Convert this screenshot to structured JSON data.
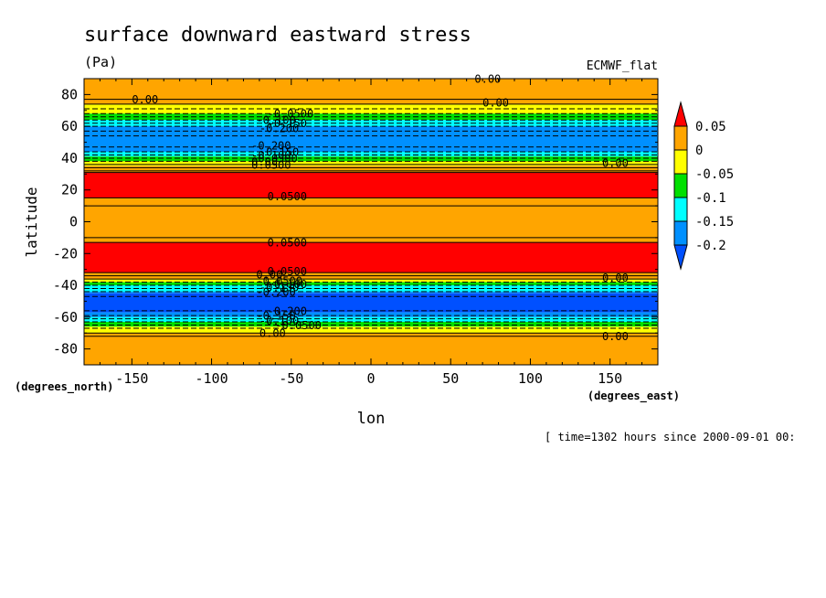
{
  "chart_data": {
    "type": "heatmap",
    "title": "surface downward eastward stress",
    "subtitle": "(Pa)",
    "dataset": "ECMWF_flat",
    "xlabel": "lon",
    "ylabel": "latitude",
    "x_units": "(degrees_east)",
    "y_units": "(degrees_north)",
    "footer": "[ time=1302 hours since 2000-09-01 00:",
    "xlim": [
      -180,
      180
    ],
    "ylim": [
      -90,
      90
    ],
    "x_ticks": [
      "-150",
      "-100",
      "-50",
      "0",
      "50",
      "100",
      "150"
    ],
    "x_tick_values": [
      -150,
      -100,
      -50,
      0,
      50,
      100,
      150
    ],
    "y_ticks": [
      "80",
      "60",
      "40",
      "20",
      "0",
      "-20",
      "-40",
      "-60",
      "-80"
    ],
    "y_tick_values": [
      80,
      60,
      40,
      20,
      0,
      -20,
      -40,
      -60,
      -80
    ],
    "colorbar": {
      "labels": [
        "0.05",
        "0",
        "-0.05",
        "-0.1",
        "-0.15",
        "-0.2"
      ],
      "levels": [
        0.05,
        0,
        -0.05,
        -0.1,
        -0.15,
        -0.2
      ],
      "colors": [
        "#ff0000",
        "#ffa500",
        "#ffff00",
        "#00e000",
        "#00ffff",
        "#0090ff",
        "#0050ff"
      ]
    },
    "bands": [
      {
        "lat": [
          74,
          90
        ],
        "value": 0.02,
        "color": "#ffa500"
      },
      {
        "lat": [
          68,
          74
        ],
        "value": -0.02,
        "color": "#ffff00"
      },
      {
        "lat": [
          64,
          68
        ],
        "value": -0.07,
        "color": "#00e000"
      },
      {
        "lat": [
          60,
          64
        ],
        "value": -0.12,
        "color": "#00ffff"
      },
      {
        "lat": [
          44,
          60
        ],
        "value": -0.17,
        "color": "#0090ff"
      },
      {
        "lat": [
          41,
          44
        ],
        "value": -0.12,
        "color": "#00ffff"
      },
      {
        "lat": [
          38,
          41
        ],
        "value": -0.07,
        "color": "#00e000"
      },
      {
        "lat": [
          35,
          38
        ],
        "value": -0.02,
        "color": "#ffff00"
      },
      {
        "lat": [
          31,
          35
        ],
        "value": 0.02,
        "color": "#ffa500"
      },
      {
        "lat": [
          15,
          31
        ],
        "value": 0.07,
        "color": "#ff0000"
      },
      {
        "lat": [
          -13,
          15
        ],
        "value": 0.03,
        "color": "#ffa500"
      },
      {
        "lat": [
          -32,
          -13
        ],
        "value": 0.07,
        "color": "#ff0000"
      },
      {
        "lat": [
          -36,
          -32
        ],
        "value": 0.02,
        "color": "#ffa500"
      },
      {
        "lat": [
          -38,
          -36
        ],
        "value": -0.02,
        "color": "#ffff00"
      },
      {
        "lat": [
          -40,
          -38
        ],
        "value": -0.07,
        "color": "#00e000"
      },
      {
        "lat": [
          -44,
          -40
        ],
        "value": -0.12,
        "color": "#00ffff"
      },
      {
        "lat": [
          -45,
          -44
        ],
        "value": -0.17,
        "color": "#0090ff"
      },
      {
        "lat": [
          -57,
          -45
        ],
        "value": -0.22,
        "color": "#0050ff"
      },
      {
        "lat": [
          -60,
          -57
        ],
        "value": -0.17,
        "color": "#0090ff"
      },
      {
        "lat": [
          -63,
          -60
        ],
        "value": -0.12,
        "color": "#00ffff"
      },
      {
        "lat": [
          -66,
          -63
        ],
        "value": -0.07,
        "color": "#00e000"
      },
      {
        "lat": [
          -70,
          -66
        ],
        "value": -0.02,
        "color": "#ffff00"
      },
      {
        "lat": [
          -90,
          -70
        ],
        "value": 0.02,
        "color": "#ffa500"
      }
    ],
    "contour_lines": [
      {
        "lat": 77,
        "style": "solid"
      },
      {
        "lat": 74,
        "style": "solid"
      },
      {
        "lat": 71,
        "style": "dashed"
      },
      {
        "lat": 68,
        "style": "dashed"
      },
      {
        "lat": 66,
        "style": "dashed"
      },
      {
        "lat": 64,
        "style": "dashed"
      },
      {
        "lat": 62,
        "style": "dashed"
      },
      {
        "lat": 60,
        "style": "dashed"
      },
      {
        "lat": 57,
        "style": "dashed"
      },
      {
        "lat": 54,
        "style": "dashed"
      },
      {
        "lat": 47,
        "style": "dashed"
      },
      {
        "lat": 44,
        "style": "dashed"
      },
      {
        "lat": 42,
        "style": "dashed"
      },
      {
        "lat": 40,
        "style": "dashed"
      },
      {
        "lat": 38,
        "style": "dashed"
      },
      {
        "lat": 36,
        "style": "solid"
      },
      {
        "lat": 34,
        "style": "solid"
      },
      {
        "lat": 32,
        "style": "solid"
      },
      {
        "lat": 31,
        "style": "solid"
      },
      {
        "lat": 15,
        "style": "solid"
      },
      {
        "lat": 10,
        "style": "solid"
      },
      {
        "lat": -10,
        "style": "solid"
      },
      {
        "lat": -13,
        "style": "solid"
      },
      {
        "lat": -32,
        "style": "solid"
      },
      {
        "lat": -34,
        "style": "solid"
      },
      {
        "lat": -36,
        "style": "solid"
      },
      {
        "lat": -38,
        "style": "dashed"
      },
      {
        "lat": -40,
        "style": "dashed"
      },
      {
        "lat": -42,
        "style": "dashed"
      },
      {
        "lat": -44,
        "style": "dashed"
      },
      {
        "lat": -47,
        "style": "dashed"
      },
      {
        "lat": -56,
        "style": "dashed"
      },
      {
        "lat": -59,
        "style": "dashed"
      },
      {
        "lat": -61,
        "style": "dashed"
      },
      {
        "lat": -63,
        "style": "dashed"
      },
      {
        "lat": -65,
        "style": "dashed"
      },
      {
        "lat": -67,
        "style": "dashed"
      },
      {
        "lat": -70,
        "style": "solid"
      },
      {
        "lat": -72,
        "style": "solid"
      }
    ],
    "contour_labels": [
      {
        "text": "0.00",
        "lon": 65,
        "lat": 88
      },
      {
        "text": "0.00",
        "lon": -150,
        "lat": 75
      },
      {
        "text": "0.00",
        "lon": 70,
        "lat": 73
      },
      {
        "text": "-0.0500",
        "lon": -65,
        "lat": 66
      },
      {
        "text": "-0.100",
        "lon": -72,
        "lat": 62
      },
      {
        "text": "-0.150",
        "lon": -65,
        "lat": 60
      },
      {
        "text": "-0.200",
        "lon": -70,
        "lat": 57
      },
      {
        "text": "-0.200",
        "lon": -75,
        "lat": 46
      },
      {
        "text": "-0.150",
        "lon": -70,
        "lat": 42
      },
      {
        "text": "-0.100",
        "lon": -75,
        "lat": 40
      },
      {
        "text": "-0.0500",
        "lon": -75,
        "lat": 38
      },
      {
        "text": "0.00",
        "lon": -75,
        "lat": 36
      },
      {
        "text": "0.0500",
        "lon": -75,
        "lat": 34
      },
      {
        "text": "0.00",
        "lon": 145,
        "lat": 35
      },
      {
        "text": "0.0500",
        "lon": -65,
        "lat": 14
      },
      {
        "text": "0.0500",
        "lon": -65,
        "lat": -15
      },
      {
        "text": "0.0500",
        "lon": -65,
        "lat": -33
      },
      {
        "text": "0.00",
        "lon": -72,
        "lat": -35
      },
      {
        "text": "0.00",
        "lon": 145,
        "lat": -37
      },
      {
        "text": "-0.0500",
        "lon": -72,
        "lat": -39
      },
      {
        "text": "-0.100",
        "lon": -65,
        "lat": -41
      },
      {
        "text": "-0.150",
        "lon": -70,
        "lat": -43
      },
      {
        "text": "-0.200",
        "lon": -72,
        "lat": -46
      },
      {
        "text": "-0.200",
        "lon": -65,
        "lat": -58
      },
      {
        "text": "-0.150",
        "lon": -72,
        "lat": -61
      },
      {
        "text": "-0.100",
        "lon": -70,
        "lat": -64
      },
      {
        "text": "-0.0500",
        "lon": -60,
        "lat": -67
      },
      {
        "text": "0.00",
        "lon": -70,
        "lat": -72
      },
      {
        "text": "0.00",
        "lon": 145,
        "lat": -74
      }
    ]
  }
}
